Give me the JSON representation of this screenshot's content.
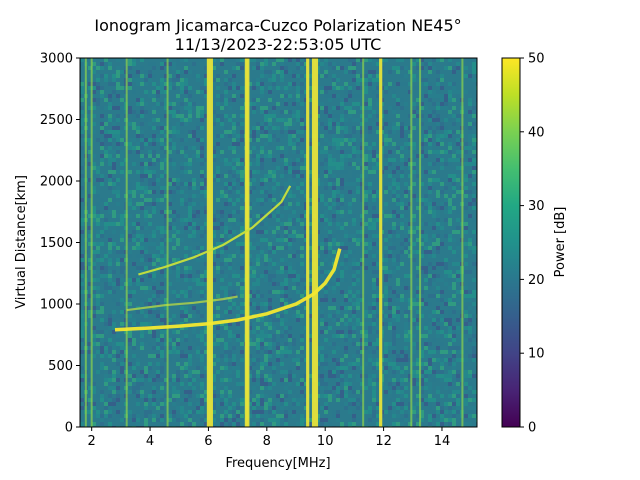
{
  "chart_data": {
    "type": "heatmap",
    "title": "Ionogram Jicamarca-Cuzco Polarization NE45°",
    "subtitle": "11/13/2023-22:53:05 UTC",
    "xlabel": "Frequency[MHz]",
    "ylabel": "Virtual Distance[km]",
    "xlim": [
      1.6,
      15.2
    ],
    "ylim": [
      0,
      3000
    ],
    "xticks": [
      2,
      4,
      6,
      8,
      10,
      12,
      14
    ],
    "yticks": [
      0,
      500,
      1000,
      1500,
      2000,
      2500,
      3000
    ],
    "colorbar": {
      "label": "Power [dB]",
      "range": [
        0,
        50
      ],
      "ticks": [
        0,
        10,
        20,
        30,
        40,
        50
      ],
      "colormap": "viridis"
    },
    "vertical_bands_mhz": [
      1.8,
      2.0,
      3.2,
      4.6,
      6.0,
      6.1,
      7.3,
      7.35,
      9.4,
      9.6,
      9.7,
      11.3,
      11.9,
      12.95,
      13.25,
      14.7
    ],
    "traces": [
      {
        "x": [
          2.8,
          4.0,
          5.0,
          6.0,
          7.0,
          8.0,
          9.0,
          9.6,
          10.0,
          10.3,
          10.5
        ],
        "y": [
          790,
          805,
          820,
          840,
          870,
          920,
          1000,
          1080,
          1170,
          1280,
          1450
        ]
      },
      {
        "x": [
          3.6,
          4.5,
          5.5,
          6.5,
          7.5,
          8.5,
          8.8
        ],
        "y": [
          1240,
          1300,
          1380,
          1480,
          1620,
          1830,
          1960
        ]
      },
      {
        "x": [
          3.2,
          4.5,
          5.5,
          6.5,
          7.0
        ],
        "y": [
          950,
          990,
          1010,
          1040,
          1060
        ]
      }
    ]
  }
}
